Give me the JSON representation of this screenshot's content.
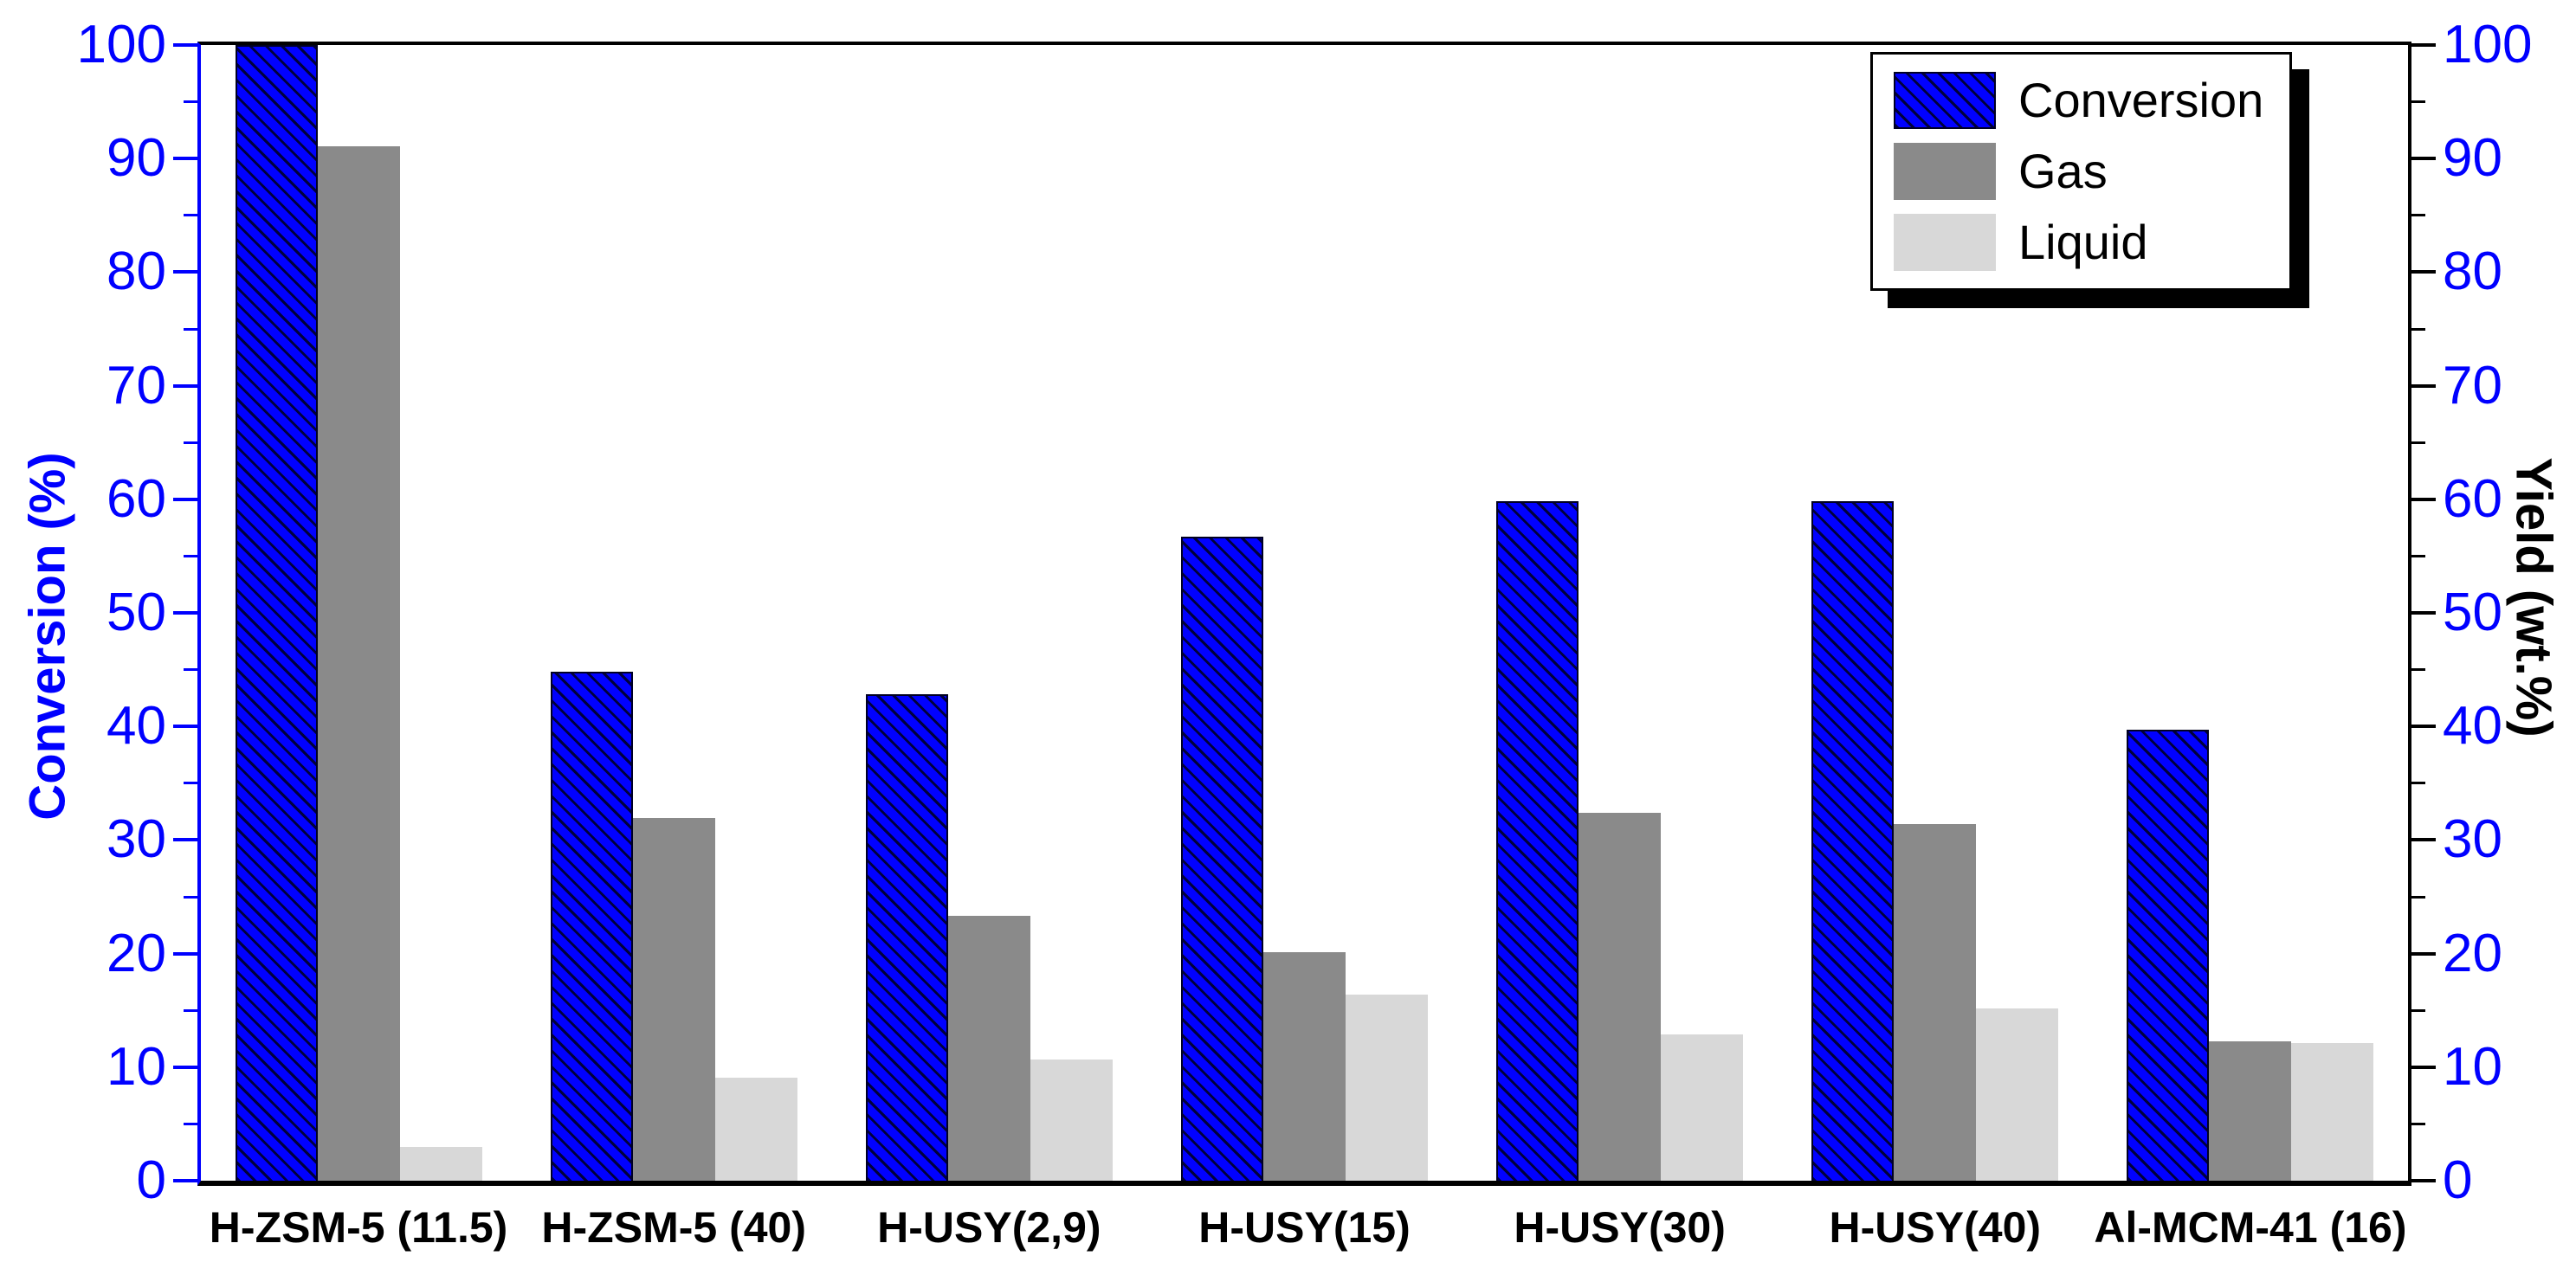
{
  "chart_data": {
    "type": "bar",
    "categories": [
      "H-ZSM-5 (11.5)",
      "H-ZSM-5 (40)",
      "H-USY(2,9)",
      "H-USY(15)",
      "H-USY(30)",
      "H-USY(40)",
      "Al-MCM-41 (16)"
    ],
    "series": [
      {
        "name": "Conversion",
        "axis": "left",
        "color": "#0101ff",
        "hatch": true,
        "values": [
          100,
          44.8,
          42.8,
          56.7,
          59.8,
          59.8,
          39.7
        ]
      },
      {
        "name": "Gas",
        "axis": "right",
        "color": "#8a8a8a",
        "hatch": false,
        "values": [
          91.1,
          31.9,
          23.3,
          20.1,
          32.4,
          31.4,
          12.3
        ]
      },
      {
        "name": "Liquid",
        "axis": "right",
        "color": "#d8d8d8",
        "hatch": false,
        "values": [
          3.0,
          9.1,
          10.7,
          16.4,
          12.9,
          15.2,
          12.1
        ]
      }
    ],
    "left_axis": {
      "label": "Conversion (%)",
      "min": 0,
      "max": 100,
      "major_step": 10,
      "minor_step": 5,
      "tick_labels": [
        "0",
        "10",
        "20",
        "30",
        "40",
        "50",
        "60",
        "70",
        "80",
        "90",
        "100"
      ],
      "axis_color": "#0000ff",
      "tick_label_color": "#0000ff"
    },
    "right_axis": {
      "label": "Yield (wt.%)",
      "min": 0,
      "max": 100,
      "major_step": 10,
      "minor_step": 5,
      "tick_labels": [
        "0",
        "10",
        "20",
        "30",
        "40",
        "50",
        "60",
        "70",
        "80",
        "90",
        "100"
      ],
      "axis_color": "#000000",
      "tick_label_color": "#0000ff"
    },
    "legend": {
      "position": "top-right",
      "entries": [
        "Conversion",
        "Gas",
        "Liquid"
      ]
    },
    "grid": false
  }
}
